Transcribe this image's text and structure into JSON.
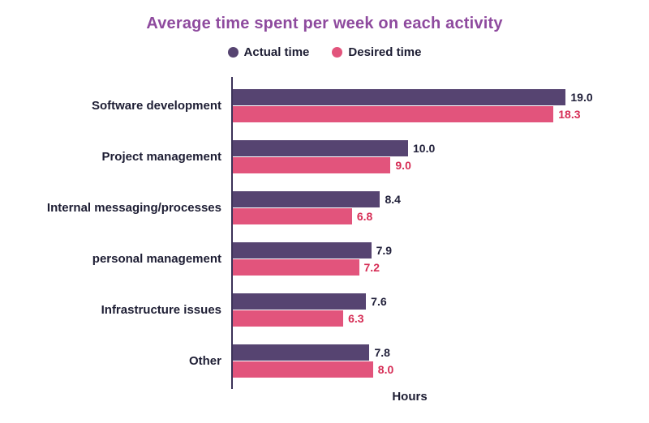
{
  "chart_data": {
    "type": "bar",
    "orientation": "horizontal",
    "title": "Average time spent per week on each activity",
    "xlabel": "Hours",
    "categories": [
      "Software development",
      "Project management",
      "Internal messaging/processes",
      "personal management",
      "Infrastructure issues",
      "Other"
    ],
    "series": [
      {
        "name": "Actual time",
        "color": "#564471",
        "label_color": "#21203a",
        "values": [
          19.0,
          10.0,
          8.4,
          7.9,
          7.6,
          7.8
        ]
      },
      {
        "name": "Desired time",
        "color": "#e2547c",
        "label_color": "#d62e56",
        "values": [
          18.3,
          9.0,
          6.8,
          7.2,
          6.3,
          8.0
        ]
      }
    ],
    "xlim": [
      0,
      20
    ],
    "value_labels": true,
    "value_label_format": "one-decimal",
    "legend_position": "top",
    "grid": false
  },
  "colors": {
    "title": "#8e4a9e",
    "axis": "#3b3258",
    "text": "#1d1d33"
  }
}
